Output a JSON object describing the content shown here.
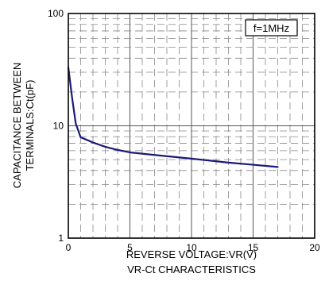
{
  "chart_data": {
    "type": "line",
    "title": "VR-Ct CHARACTERISTICS",
    "xlabel": "REVERSE VOLTAGE:VR(V)",
    "ylabel_lines": [
      "CAPACITANCE BETWEEN",
      "TERMINALS:Ct(pF)"
    ],
    "annotation": "f=1MHz",
    "xlim": [
      0,
      20
    ],
    "ylim": [
      1,
      100
    ],
    "yscale": "log",
    "grid": true,
    "x_ticks": [
      "0",
      "5",
      "10",
      "15",
      "20"
    ],
    "y_ticks": [
      "1",
      "10",
      "100"
    ],
    "series": [
      {
        "color": "#1a1a7a",
        "x": [
          0,
          0.3,
          0.6,
          1.0,
          1.5,
          2.0,
          3.0,
          4.0,
          5.0,
          7.0,
          10.0,
          13.0,
          15.0,
          17.0
        ],
        "y": [
          33,
          18,
          10.5,
          7.9,
          7.5,
          7.1,
          6.5,
          6.1,
          5.8,
          5.5,
          5.1,
          4.7,
          4.5,
          4.3
        ]
      }
    ]
  },
  "colors": {
    "line": "#1a1a7a",
    "grid_major": "#555555",
    "grid_minor": "#888888",
    "frame": "#000000"
  }
}
